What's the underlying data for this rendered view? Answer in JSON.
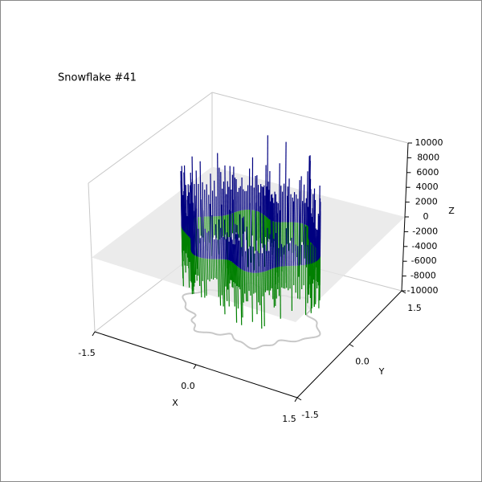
{
  "chart_data": {
    "type": "surface3d",
    "title": "Snowflake #41",
    "x_label": "X",
    "y_label": "Y",
    "z_label": "Z",
    "xlim": [
      -1.5,
      1.5
    ],
    "ylim": [
      -1.5,
      1.5
    ],
    "zlim": [
      -10000,
      10000
    ],
    "xticks": [
      -1.5,
      {
        "value": 0,
        "label": "0.0"
      },
      1.5
    ],
    "yticks": [
      -1.5,
      {
        "value": 0,
        "label": "0.0"
      },
      1.5
    ],
    "zticks": [
      -10000,
      -8000,
      -6000,
      -4000,
      -2000,
      0,
      2000,
      4000,
      6000,
      8000,
      10000
    ],
    "upper_color": "#000080",
    "lower_color": "#008000"
  }
}
